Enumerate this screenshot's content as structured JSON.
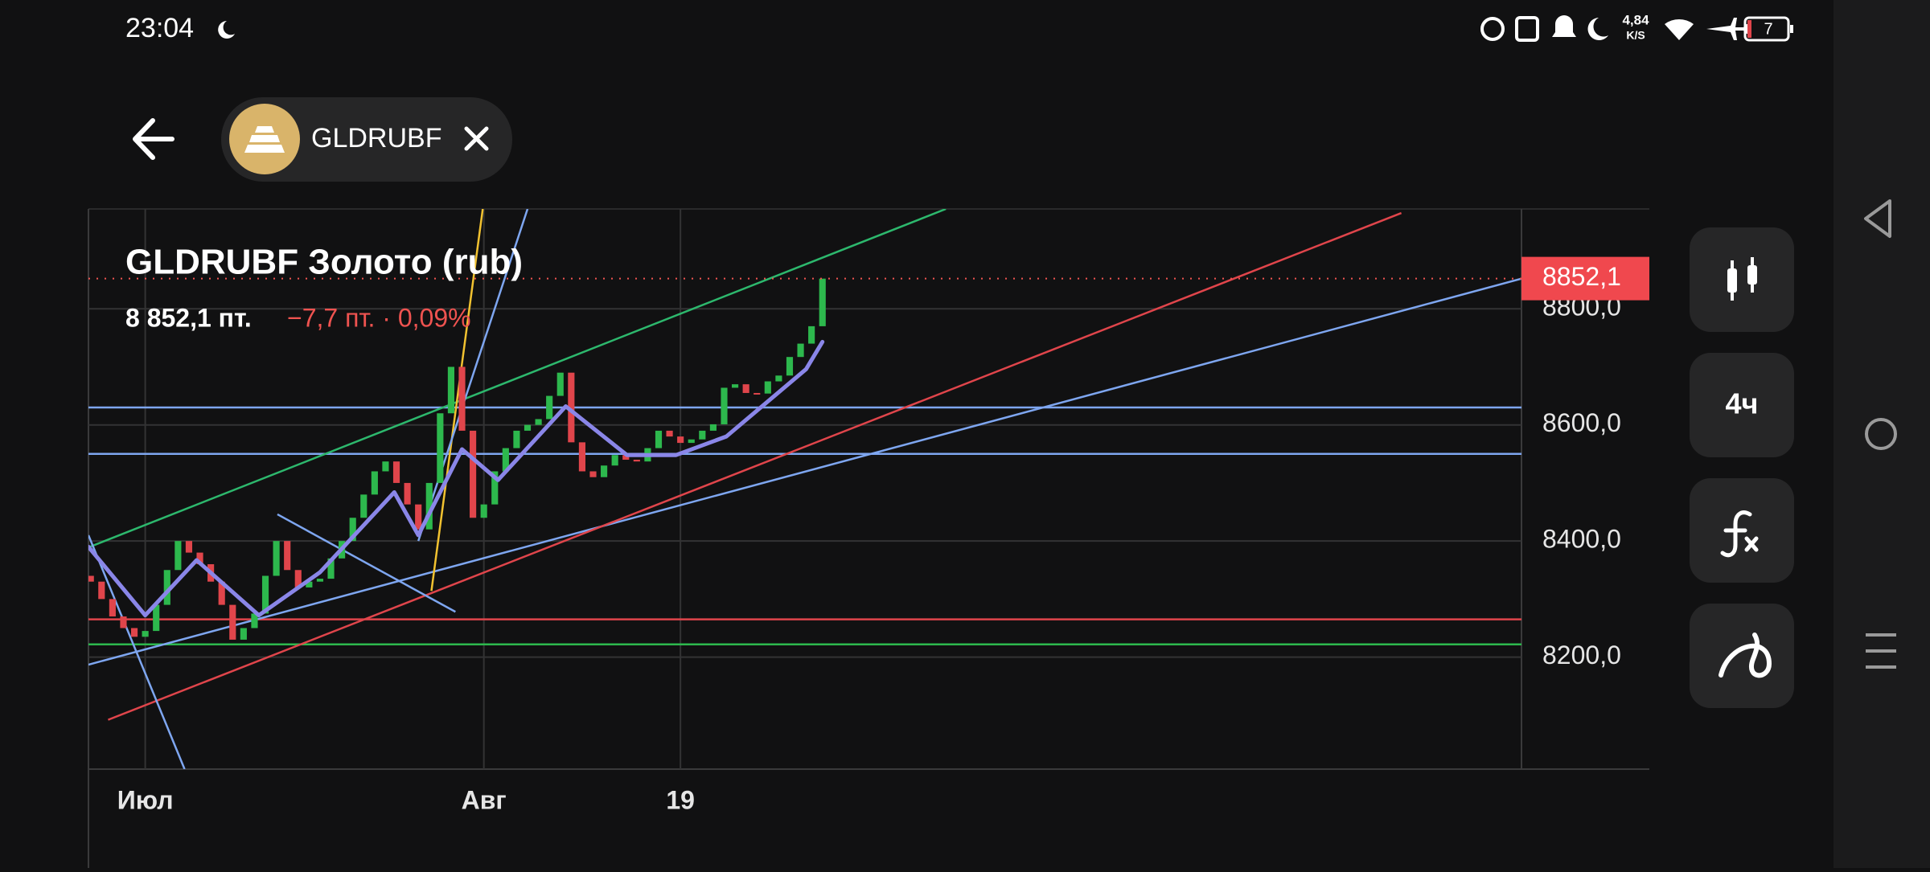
{
  "status_bar": {
    "time": "23:04",
    "net_speed": "4,84",
    "net_unit": "K/S",
    "battery": "7"
  },
  "header": {
    "ticker": "GLDRUBF"
  },
  "toolbar": {
    "interval": "4ч"
  },
  "chart_data": {
    "type": "candlestick",
    "title": "GLDRUBF Золото (rub)",
    "price": "8 852,1 пт.",
    "change": "−7,7 пт. · 0,09%",
    "up_color": "#2db84d",
    "down_color": "#e0454b",
    "grid": true,
    "x": [
      -5,
      -4,
      -3,
      -2,
      -1,
      0,
      1,
      2,
      3,
      4,
      5,
      6,
      7,
      8,
      9,
      10,
      11,
      12,
      13,
      14,
      15,
      16,
      17,
      18,
      19,
      20,
      21,
      22,
      23,
      24,
      25,
      26,
      27,
      28,
      29,
      30,
      31,
      32,
      33,
      34,
      35,
      36,
      37,
      38,
      39,
      40,
      41,
      42,
      43,
      44,
      45,
      46,
      47,
      48,
      49,
      50,
      51,
      52,
      53,
      54,
      55,
      56,
      57,
      58,
      59,
      60,
      61,
      62
    ],
    "open": [
      8340,
      8330,
      8300,
      8270,
      8250,
      8235,
      8245,
      8290,
      8350,
      8400,
      8380,
      8360,
      8330,
      8290,
      8230,
      8250,
      8275,
      8340,
      8400,
      8350,
      8320,
      8330,
      8335,
      8370,
      8400,
      8440,
      8480,
      8520,
      8537,
      8500,
      8463,
      8420,
      8500,
      8620,
      8700,
      8590,
      8440,
      8463,
      8520,
      8560,
      8590,
      8600,
      8610,
      8650,
      8690,
      8570,
      8520,
      8510,
      8530,
      8548,
      8540,
      8537,
      8560,
      8590,
      8580,
      8569,
      8575,
      8590,
      8601,
      8664,
      8670,
      8655,
      8654,
      8675,
      8685,
      8717,
      8740,
      8770
    ],
    "close": [
      8330,
      8300,
      8270,
      8250,
      8235,
      8245,
      8290,
      8350,
      8400,
      8380,
      8360,
      8330,
      8290,
      8230,
      8250,
      8275,
      8340,
      8400,
      8350,
      8320,
      8330,
      8335,
      8370,
      8400,
      8440,
      8480,
      8520,
      8537,
      8500,
      8463,
      8420,
      8500,
      8620,
      8700,
      8590,
      8440,
      8463,
      8520,
      8560,
      8590,
      8600,
      8610,
      8650,
      8690,
      8570,
      8520,
      8510,
      8530,
      8548,
      8540,
      8537,
      8560,
      8590,
      8580,
      8569,
      8575,
      8590,
      8601,
      8664,
      8670,
      8655,
      8654,
      8675,
      8685,
      8717,
      8740,
      8770,
      8852
    ],
    "ma": {
      "color": "#8a86e8",
      "x": [
        -5.2,
        0,
        4.7,
        10.4,
        16,
        22.8,
        25,
        29,
        32.3,
        38.5,
        44.1,
        48.6,
        53.2,
        60.5,
        62
      ],
      "values": [
        8390,
        8272,
        8367,
        8272,
        8346,
        8484,
        8410,
        8558,
        8505,
        8632,
        8548,
        8548,
        8580,
        8696,
        8743
      ]
    },
    "xlim": [
      -5.2,
      126
    ],
    "ylim": [
      8007,
      8972
    ],
    "xticks": [
      {
        "value": 0,
        "label": "Июл"
      },
      {
        "value": 31,
        "label": "Авг"
      },
      {
        "value": 49,
        "label": "19"
      }
    ],
    "yticks": [
      {
        "value": 8200,
        "label": "8200,0"
      },
      {
        "value": 8400,
        "label": "8400,0"
      },
      {
        "value": 8600,
        "label": "8600,0"
      },
      {
        "value": 8800,
        "label": "8800,0"
      }
    ],
    "last_price": {
      "value": 8852.1,
      "label": "8852,1"
    },
    "levels": [
      {
        "value": 8630,
        "color": "#7ea6f0"
      },
      {
        "value": 8550,
        "color": "#7ea6f0"
      },
      {
        "value": 8265,
        "color": "#e0454b"
      },
      {
        "value": 8222,
        "color": "#2db84d"
      }
    ],
    "trendlines": [
      {
        "color": "#2db86d",
        "x": [
          -5.2,
          73.3
        ],
        "y": [
          8389,
          8972
        ]
      },
      {
        "color": "#7ea6f0",
        "x": [
          -5.2,
          126
        ],
        "y": [
          8187,
          8852
        ]
      },
      {
        "color": "#e0454b",
        "x": [
          -3.4,
          115
        ],
        "y": [
          8092,
          8965
        ]
      },
      {
        "color": "#f2c230",
        "x": [
          26.2,
          30.9
        ],
        "y": [
          8314,
          8972
        ]
      },
      {
        "color": "#7ea6f0",
        "x": [
          25,
          35
        ],
        "y": [
          8400,
          8972
        ]
      },
      {
        "color": "#7ea6f0",
        "x": [
          -5.2,
          3.6
        ],
        "y": [
          8410,
          8007
        ]
      },
      {
        "color": "#7ea6f0",
        "x": [
          12.1,
          28.4
        ],
        "y": [
          8446,
          8278
        ]
      }
    ]
  }
}
